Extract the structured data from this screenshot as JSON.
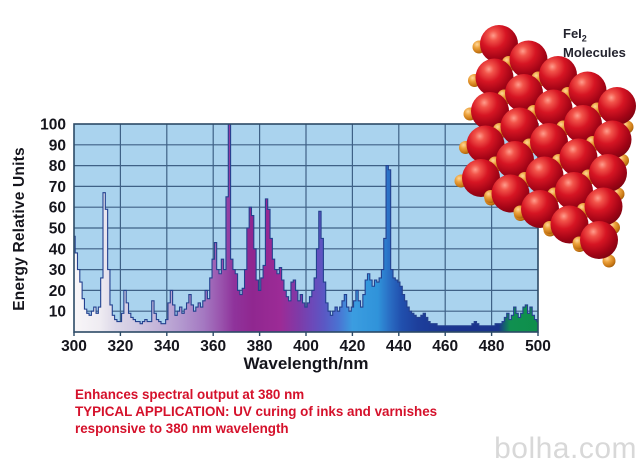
{
  "molecules": {
    "formula": "FeI",
    "subscript": "2",
    "word": "Molecules"
  },
  "annotations": {
    "color": "#d5112b",
    "lines": [
      "Enhances spectral output at 380 nm",
      "TYPICAL APPLICATION: UV curing of inks and varnishes",
      "responsive to 380 nm wavelength"
    ]
  },
  "watermark": {
    "text": "bolha.com",
    "color": "#d8d8d8"
  },
  "palette": {
    "plot_bg": "#aad3ee",
    "grid": "#3f6186",
    "border": "#2c4a66",
    "axis_text": "#15151c",
    "spectrum_outline": "#24418f",
    "atom_red": "#c41224",
    "atom_orange": "#d98a1f",
    "spectrum_stops": [
      {
        "nm": 300,
        "color": "#f8f6f8"
      },
      {
        "nm": 311,
        "color": "#efecf2"
      },
      {
        "nm": 318,
        "color": "#dcd7e8"
      },
      {
        "nm": 327,
        "color": "#d0c8e1"
      },
      {
        "nm": 336,
        "color": "#c4b4d9"
      },
      {
        "nm": 346,
        "color": "#b399cf"
      },
      {
        "nm": 356,
        "color": "#a478c1"
      },
      {
        "nm": 363,
        "color": "#9a55ae"
      },
      {
        "nm": 369,
        "color": "#8f339b"
      },
      {
        "nm": 377,
        "color": "#902790"
      },
      {
        "nm": 389,
        "color": "#9c2b96"
      },
      {
        "nm": 397,
        "color": "#7e3ba8"
      },
      {
        "nm": 403,
        "color": "#6b4aba"
      },
      {
        "nm": 408,
        "color": "#5a58c4"
      },
      {
        "nm": 414,
        "color": "#4a73d2"
      },
      {
        "nm": 420,
        "color": "#3b9de0"
      },
      {
        "nm": 431,
        "color": "#3093da"
      },
      {
        "nm": 436,
        "color": "#2a6ec4"
      },
      {
        "nm": 441,
        "color": "#2150ae"
      },
      {
        "nm": 448,
        "color": "#1d3f9c"
      },
      {
        "nm": 460,
        "color": "#1b3590"
      },
      {
        "nm": 483,
        "color": "#1a338c"
      },
      {
        "nm": 488,
        "color": "#109050"
      },
      {
        "nm": 500,
        "color": "#0e8f4b"
      }
    ]
  },
  "chart_data": {
    "type": "area",
    "title": "",
    "xlabel": "Wavelength/nm",
    "ylabel": "Energy Relative Units",
    "xlim": [
      300,
      500
    ],
    "ylim": [
      0,
      100
    ],
    "grid": true,
    "x_ticks": [
      300,
      320,
      340,
      360,
      380,
      400,
      420,
      440,
      460,
      480,
      500
    ],
    "y_ticks": [
      10,
      20,
      30,
      40,
      50,
      60,
      70,
      80,
      90,
      100
    ],
    "x_start": 300,
    "x_step": 1,
    "values": [
      46,
      38,
      30,
      24,
      16,
      11,
      9,
      8,
      10,
      12,
      9,
      12,
      26,
      67,
      59,
      30,
      13,
      8,
      6,
      5,
      5,
      9,
      20,
      14,
      9,
      7,
      6,
      5,
      5,
      4,
      5,
      6,
      5,
      5,
      15,
      9,
      6,
      5,
      4,
      4,
      6,
      14,
      20,
      13,
      8,
      10,
      12,
      9,
      11,
      14,
      18,
      13,
      10,
      12,
      14,
      12,
      15,
      20,
      16,
      26,
      35,
      43,
      30,
      28,
      35,
      30,
      65,
      101,
      35,
      30,
      28,
      20,
      18,
      21,
      30,
      50,
      60,
      56,
      40,
      25,
      20,
      26,
      32,
      64,
      59,
      45,
      35,
      30,
      28,
      31,
      25,
      20,
      17,
      15,
      24,
      25,
      20,
      15,
      18,
      14,
      12,
      14,
      17,
      20,
      26,
      40,
      58,
      45,
      24,
      14,
      10,
      8,
      10,
      12,
      10,
      12,
      15,
      18,
      12,
      10,
      12,
      15,
      20,
      15,
      12,
      18,
      25,
      28,
      25,
      22,
      25,
      24,
      26,
      30,
      45,
      80,
      78,
      30,
      26,
      25,
      24,
      22,
      18,
      15,
      12,
      10,
      9,
      8,
      7,
      7,
      8,
      9,
      7,
      5,
      4,
      4,
      4,
      3,
      3,
      3,
      3,
      3,
      3,
      3,
      3,
      3,
      3,
      3,
      3,
      3,
      3,
      3,
      4,
      5,
      4,
      3,
      3,
      3,
      3,
      3,
      3,
      3,
      4,
      4,
      4,
      5,
      7,
      9,
      6,
      8,
      12,
      9,
      7,
      9,
      12,
      13,
      9,
      12,
      8,
      6,
      5
    ]
  }
}
